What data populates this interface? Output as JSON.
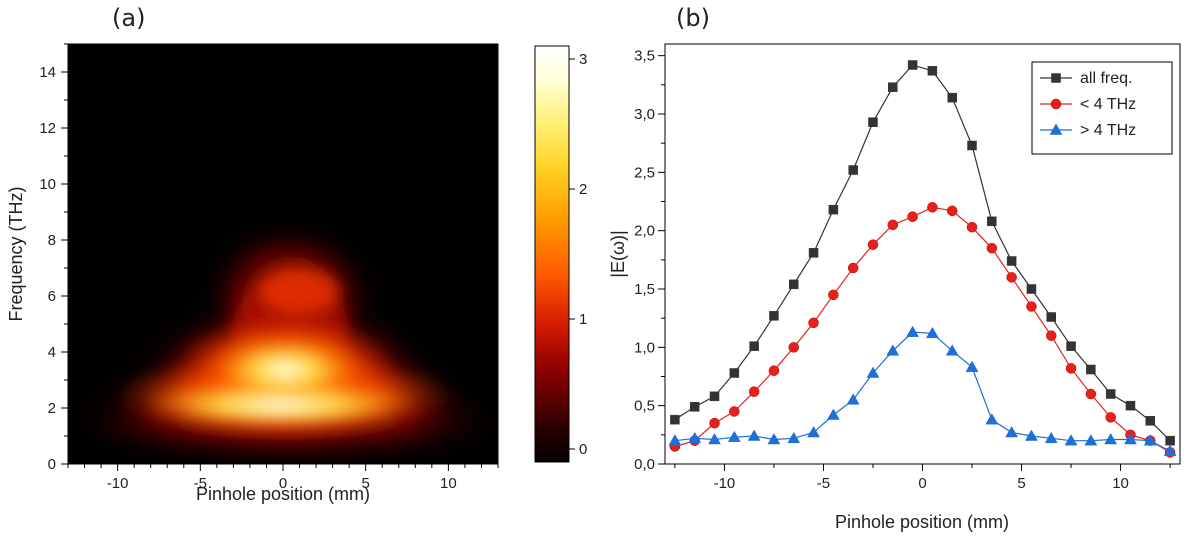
{
  "chart_data": [
    {
      "type": "heatmap",
      "panel_label": "(a)",
      "xlabel": "Pinhole position (mm)",
      "ylabel": "Frequency (THz)",
      "xlim": [
        -13,
        13
      ],
      "ylim": [
        0,
        15
      ],
      "x_ticks": [
        -10,
        -5,
        0,
        5,
        10
      ],
      "x_tick_labels": [
        "-10",
        "-5",
        "0",
        "5",
        "10"
      ],
      "y_ticks": [
        0,
        2,
        4,
        6,
        8,
        10,
        12,
        14
      ],
      "y_tick_labels": [
        "0",
        "2",
        "4",
        "6",
        "8",
        "10",
        "12",
        "14"
      ],
      "colorbar": {
        "range": [
          -0.1,
          3.1
        ],
        "ticks": [
          0,
          1,
          2,
          3
        ],
        "tick_labels": [
          "0",
          "1",
          "2",
          "3"
        ]
      },
      "colormap_stops": [
        "#000000",
        "#3a0000",
        "#8b0000",
        "#d41a00",
        "#ff6a00",
        "#ffb300",
        "#ffee55",
        "#ffffdd",
        "#ffffff"
      ],
      "intensity_description": {
        "max_value": 3.0,
        "peak_x": 0,
        "peak_frequency_thz": 1.5,
        "spread_top_frequency_thz": 8.5
      }
    },
    {
      "type": "line",
      "panel_label": "(b)",
      "xlabel": "Pinhole position (mm)",
      "ylabel": "|E(ω)|",
      "xlim": [
        -13,
        13
      ],
      "ylim": [
        0,
        3.6
      ],
      "x_ticks": [
        -10,
        -5,
        0,
        5,
        10
      ],
      "x_tick_labels": [
        "-10",
        "-5",
        "0",
        "5",
        "10"
      ],
      "y_ticks": [
        0,
        0.5,
        1,
        1.5,
        2,
        2.5,
        3,
        3.5
      ],
      "y_tick_labels": [
        "0,0",
        "0,5",
        "1,0",
        "1,5",
        "2,0",
        "2,5",
        "3,0",
        "3,5"
      ],
      "legend_position": "top-right",
      "series": [
        {
          "name": "all freq.",
          "color": "#333333",
          "marker": "square",
          "x": [
            -12.5,
            -11.5,
            -10.5,
            -9.5,
            -8.5,
            -7.5,
            -6.5,
            -5.5,
            -4.5,
            -3.5,
            -2.5,
            -1.5,
            -0.5,
            0.5,
            1.5,
            2.5,
            3.5,
            4.5,
            5.5,
            6.5,
            7.5,
            8.5,
            9.5,
            10.5,
            11.5,
            12.5
          ],
          "values": [
            0.38,
            0.49,
            0.58,
            0.78,
            1.01,
            1.27,
            1.54,
            1.81,
            2.18,
            2.52,
            2.93,
            3.23,
            3.42,
            3.37,
            3.14,
            2.73,
            2.08,
            1.74,
            1.5,
            1.26,
            1.01,
            0.81,
            0.6,
            0.5,
            0.37,
            0.2
          ]
        },
        {
          "name": "< 4 THz",
          "color": "#e8201c",
          "marker": "circle",
          "x": [
            -12.5,
            -11.5,
            -10.5,
            -9.5,
            -8.5,
            -7.5,
            -6.5,
            -5.5,
            -4.5,
            -3.5,
            -2.5,
            -1.5,
            -0.5,
            0.5,
            1.5,
            2.5,
            3.5,
            4.5,
            5.5,
            6.5,
            7.5,
            8.5,
            9.5,
            10.5,
            11.5,
            12.5
          ],
          "values": [
            0.15,
            0.2,
            0.35,
            0.45,
            0.62,
            0.8,
            1.0,
            1.21,
            1.45,
            1.68,
            1.88,
            2.05,
            2.12,
            2.2,
            2.17,
            2.03,
            1.85,
            1.6,
            1.35,
            1.1,
            0.82,
            0.6,
            0.4,
            0.25,
            0.2,
            0.1
          ]
        },
        {
          "name": "> 4 THz",
          "color": "#1f6fd6",
          "marker": "triangle",
          "x": [
            -12.5,
            -11.5,
            -10.5,
            -9.5,
            -8.5,
            -7.5,
            -6.5,
            -5.5,
            -4.5,
            -3.5,
            -2.5,
            -1.5,
            -0.5,
            0.5,
            1.5,
            2.5,
            3.5,
            4.5,
            5.5,
            6.5,
            7.5,
            8.5,
            9.5,
            10.5,
            11.5,
            12.5
          ],
          "values": [
            0.2,
            0.22,
            0.21,
            0.23,
            0.24,
            0.21,
            0.22,
            0.27,
            0.42,
            0.55,
            0.78,
            0.97,
            1.13,
            1.12,
            0.97,
            0.83,
            0.38,
            0.27,
            0.24,
            0.22,
            0.2,
            0.2,
            0.21,
            0.21,
            0.2,
            0.11
          ]
        }
      ]
    }
  ]
}
